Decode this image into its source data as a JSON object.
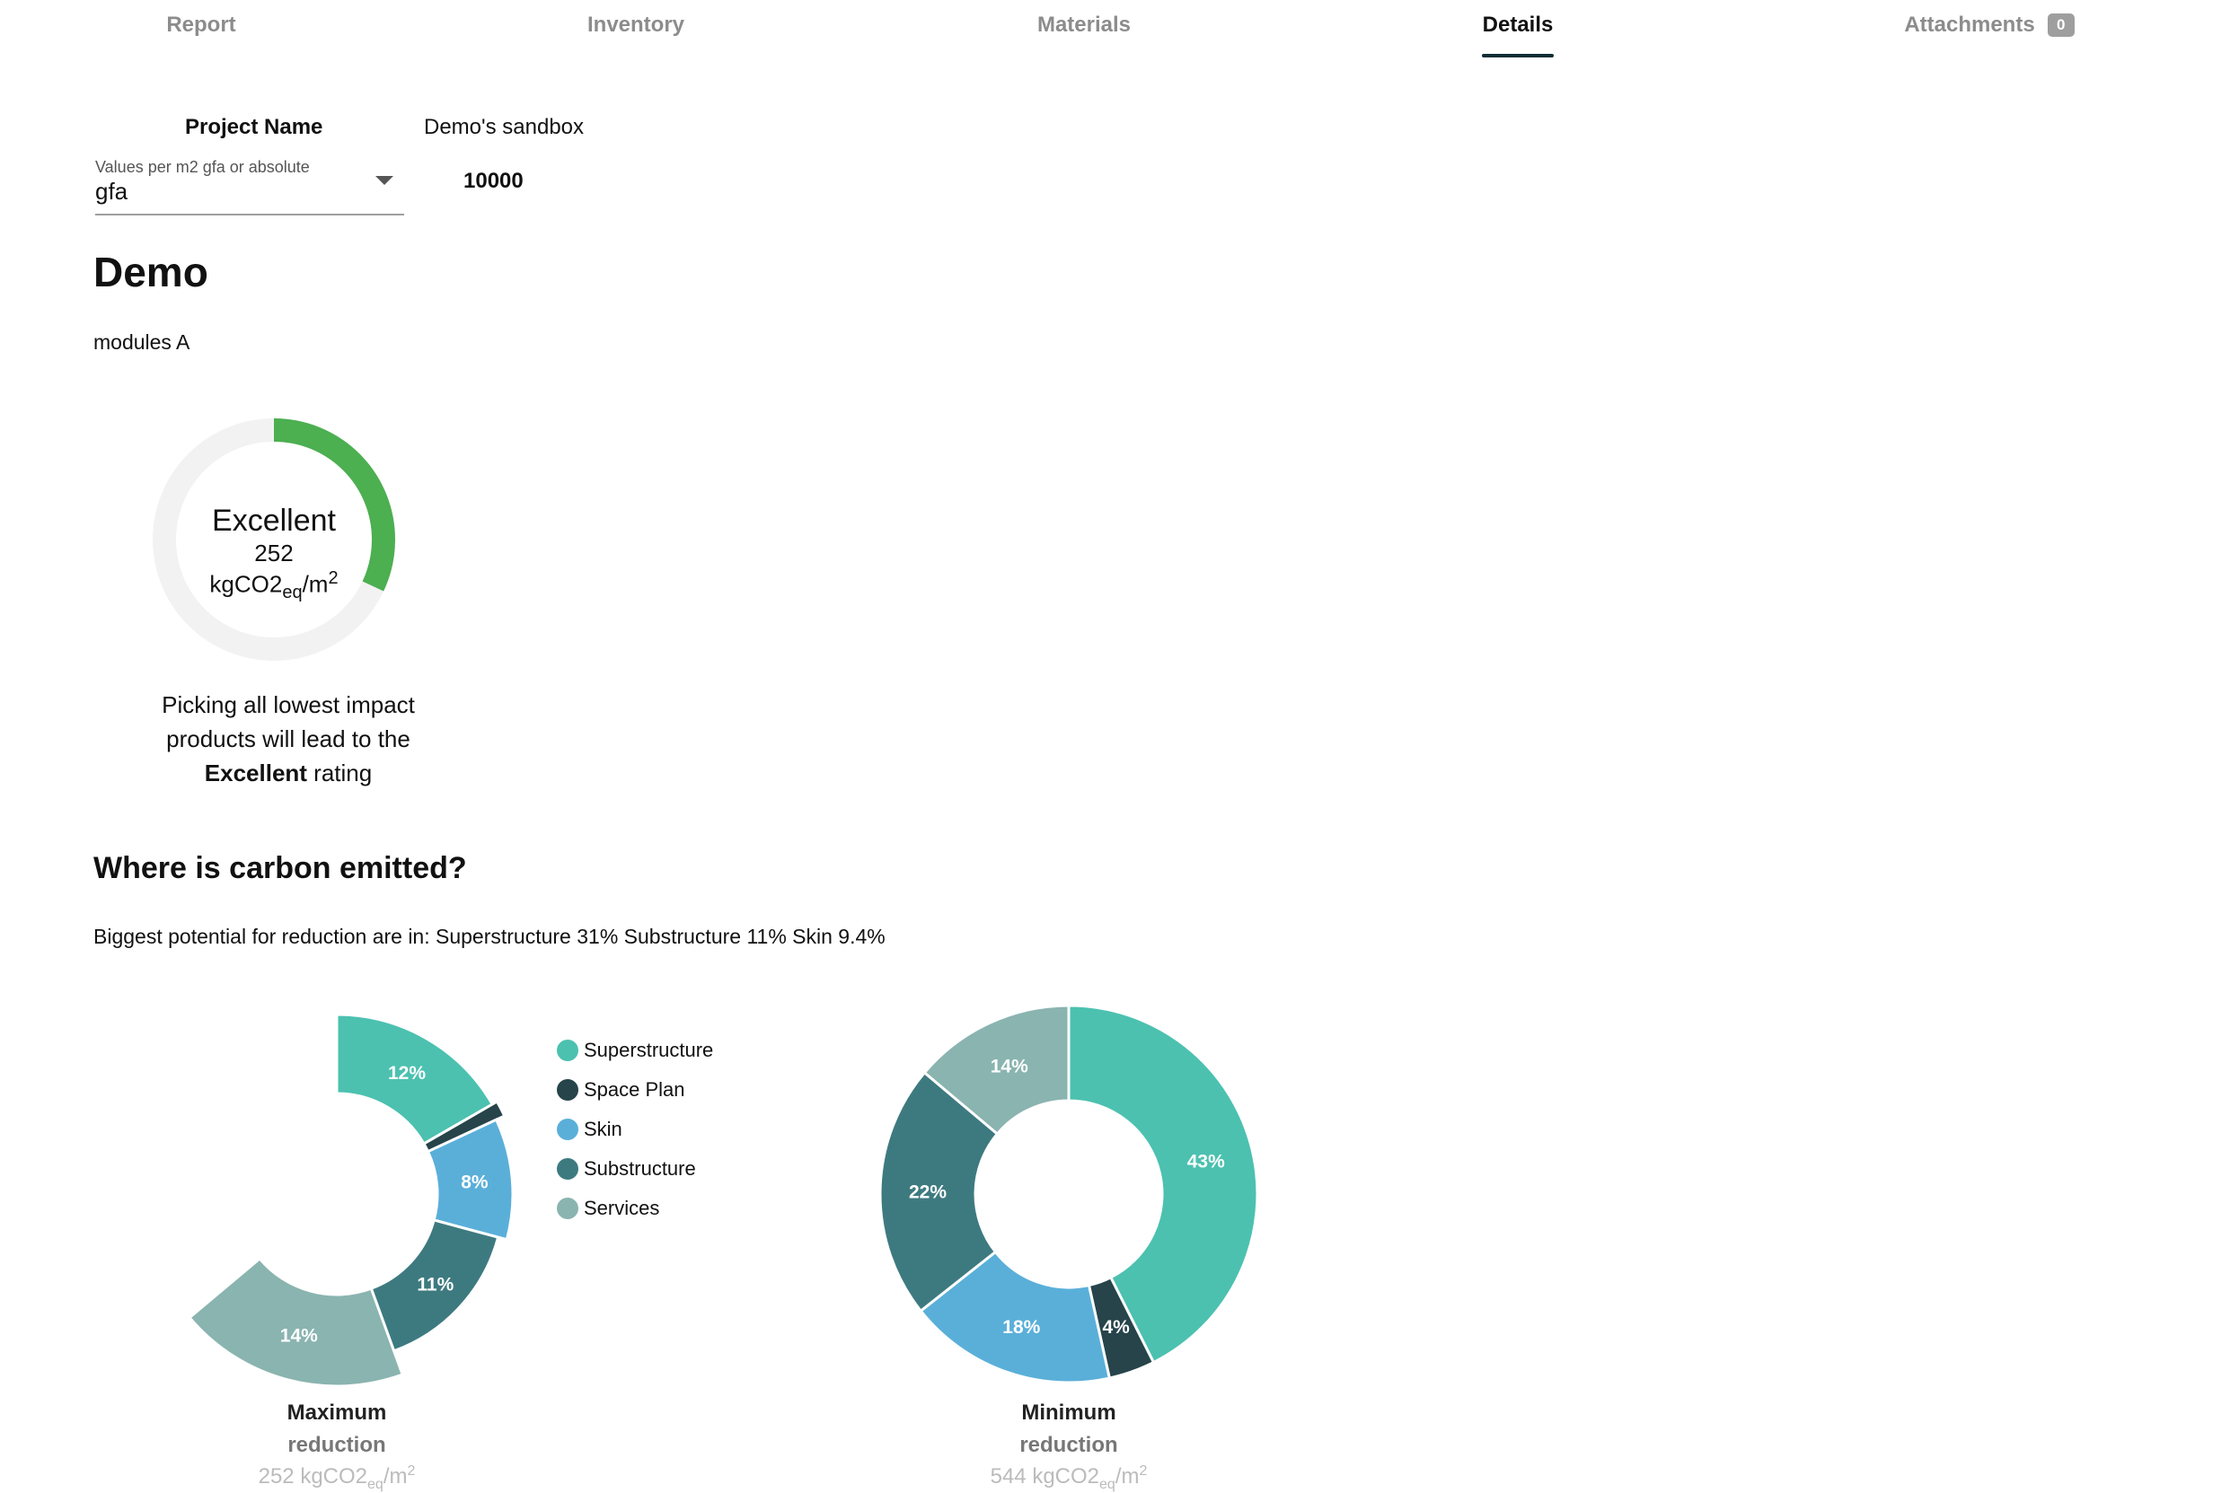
{
  "tabs": [
    {
      "label": "Report"
    },
    {
      "label": "Inventory"
    },
    {
      "label": "Materials"
    },
    {
      "label": "Details"
    },
    {
      "label": "Attachments",
      "badge": "0"
    }
  ],
  "active_tab": "Details",
  "project": {
    "name_label": "Project Name",
    "name_value": "Demo's sandbox",
    "select_label": "Values per m2 gfa or absolute",
    "select_value": "gfa",
    "gfa_value": "10000"
  },
  "title": "Demo",
  "subtitle": "modules A",
  "rating": {
    "word": "Excellent",
    "value": "252",
    "unit_main": "kgCO2",
    "unit_sub": "eq",
    "unit_tail": "/m",
    "unit_sup": "2",
    "progress_fraction": 0.32,
    "progress_color": "#4caf50",
    "track_color": "#f2f2f2",
    "message_line1": "Picking all lowest impact",
    "message_line2": "products will lead to the",
    "message_bold": "Excellent",
    "message_tail": " rating"
  },
  "section": {
    "title": "Where is carbon emitted?",
    "potential": "Biggest potential for reduction are in: Superstructure 31% Substructure 11% Skin 9.4%"
  },
  "legend": [
    {
      "name": "Superstructure",
      "color": "#4cc1b0"
    },
    {
      "name": "Space Plan",
      "color": "#26444a"
    },
    {
      "name": "Skin",
      "color": "#5aafd9"
    },
    {
      "name": "Substructure",
      "color": "#3d7a80"
    },
    {
      "name": "Services",
      "color": "#8ab4b0"
    }
  ],
  "chart_data": [
    {
      "type": "pie",
      "variant": "donut-partial",
      "categories": [
        "Superstructure",
        "Space Plan",
        "Skin",
        "Substructure",
        "Services"
      ],
      "values": [
        12,
        1,
        8,
        11,
        14
      ],
      "labels": [
        "12%",
        "",
        "8%",
        "11%",
        "14%"
      ],
      "caption_line1": "Maximum",
      "caption_line2": "reduction",
      "caption_value": "252 kgCO2",
      "caption_sub": "eq",
      "caption_unit": "/m",
      "caption_sup": "2"
    },
    {
      "type": "pie",
      "variant": "donut",
      "categories": [
        "Superstructure",
        "Space Plan",
        "Skin",
        "Substructure",
        "Services"
      ],
      "values": [
        43,
        4,
        18,
        22,
        14
      ],
      "labels": [
        "43%",
        "4%",
        "18%",
        "22%",
        "14%"
      ],
      "caption_line1": "Minimum",
      "caption_line2": "reduction",
      "caption_value": "544 kgCO2",
      "caption_sub": "eq",
      "caption_unit": "/m",
      "caption_sup": "2"
    }
  ]
}
